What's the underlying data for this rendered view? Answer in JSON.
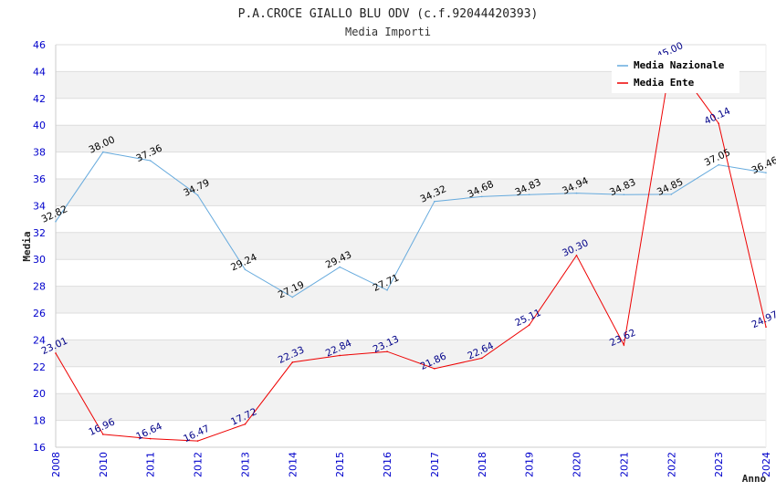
{
  "chart_data": {
    "type": "line",
    "title": "P.A.CROCE GIALLO BLU ODV (c.f.92044420393)",
    "subtitle": "Media Importi",
    "xlabel": "Anno",
    "ylabel": "Media",
    "ylim": [
      16,
      46
    ],
    "yticks": [
      "16",
      "18",
      "20",
      "22",
      "24",
      "26",
      "28",
      "30",
      "32",
      "34",
      "36",
      "38",
      "40",
      "42",
      "44",
      "46"
    ],
    "categories": [
      "2008",
      "2010",
      "2011",
      "2012",
      "2013",
      "2014",
      "2015",
      "2016",
      "2017",
      "2018",
      "2019",
      "2020",
      "2021",
      "2022",
      "2023",
      "2024"
    ],
    "series": [
      {
        "name": "Media Nazionale",
        "color": "#66aadd",
        "label_color": "#000000",
        "values": [
          32.82,
          38.0,
          37.36,
          34.79,
          29.24,
          27.19,
          29.43,
          27.71,
          34.32,
          34.68,
          34.83,
          34.94,
          34.83,
          34.85,
          37.05,
          36.46
        ],
        "labels": [
          "32.82",
          "38.00",
          "37.36",
          "34.79",
          "29.24",
          "27.19",
          "29.43",
          "27.71",
          "34.32",
          "34.68",
          "34.83",
          "34.94",
          "34.83",
          "34.85",
          "37.05",
          "36.46"
        ]
      },
      {
        "name": "Media Ente",
        "color": "#ee0000",
        "label_color": "#000088",
        "values": [
          23.01,
          16.96,
          16.64,
          16.47,
          17.72,
          22.33,
          22.84,
          23.13,
          21.86,
          22.64,
          25.11,
          30.3,
          23.62,
          45.0,
          40.14,
          24.97
        ],
        "labels": [
          "23.01",
          "16.96",
          "16.64",
          "16.47",
          "17.72",
          "22.33",
          "22.84",
          "23.13",
          "21.86",
          "22.64",
          "25.11",
          "30.30",
          "23.62",
          "45.00",
          "40.14",
          "24.97"
        ]
      }
    ],
    "grid": true,
    "legend": "top-right"
  }
}
